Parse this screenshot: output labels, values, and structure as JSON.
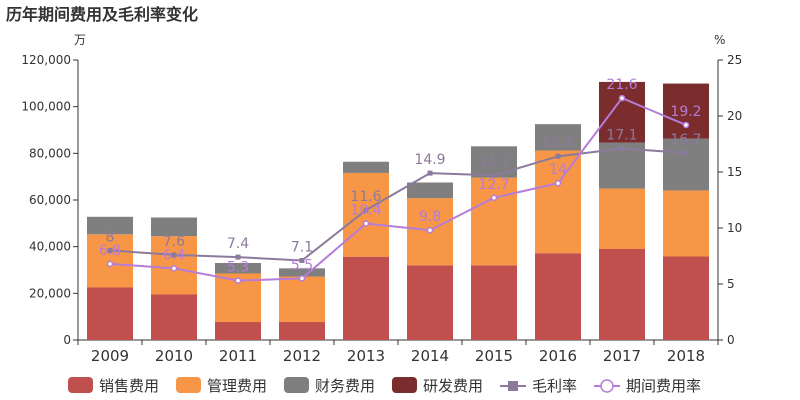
{
  "chart_data": {
    "type": "bar",
    "title": "历年期间费用及毛利率变化",
    "y_left_unit": "万",
    "y_right_unit": "%",
    "categories": [
      "2009",
      "2010",
      "2011",
      "2012",
      "2013",
      "2014",
      "2015",
      "2016",
      "2017",
      "2018"
    ],
    "ylim_left": [
      0,
      120000
    ],
    "yticks_left": [
      "0",
      "20,000",
      "40,000",
      "60,000",
      "80,000",
      "100,000",
      "120,000"
    ],
    "ylim_right": [
      0,
      25
    ],
    "yticks_right": [
      "0",
      "5",
      "10",
      "15",
      "20",
      "25"
    ],
    "legend_position": "bottom",
    "bar_series": [
      {
        "name": "销售费用",
        "color": "#c0504d",
        "values": [
          22500,
          19500,
          7700,
          7700,
          35700,
          32000,
          32000,
          37200,
          39000,
          35800
        ]
      },
      {
        "name": "管理费用",
        "color": "#f79646",
        "values": [
          22800,
          25000,
          20800,
          19500,
          35900,
          28800,
          37600,
          44000,
          25900,
          28300
        ]
      },
      {
        "name": "财务费用",
        "color": "#7f7f7f",
        "values": [
          7500,
          8000,
          4500,
          3500,
          4800,
          6700,
          13400,
          11300,
          19700,
          22200
        ]
      },
      {
        "name": "研发费用",
        "color": "#7b2c2c",
        "values": [
          0,
          0,
          0,
          0,
          0,
          0,
          0,
          0,
          26000,
          23600
        ]
      }
    ],
    "line_series": [
      {
        "name": "毛利率",
        "color": "#8c7a9c",
        "marker": "square",
        "values": [
          8,
          7.6,
          7.4,
          7.1,
          11.6,
          14.9,
          14.7,
          16.4,
          17.1,
          16.7
        ],
        "labels": [
          "8",
          "7.6",
          "7.4",
          "7.1",
          "11.6",
          "14.9",
          "14.7",
          "16.4",
          "17.1",
          "16.7"
        ]
      },
      {
        "name": "期间费用率",
        "color": "#b57cd9",
        "marker": "circle",
        "values": [
          6.8,
          6.4,
          5.3,
          5.5,
          10.4,
          9.8,
          12.7,
          14,
          21.6,
          19.2
        ],
        "labels": [
          "6.8",
          "6.4",
          "5.3",
          "5.5",
          "10.4",
          "9.8",
          "12.7",
          "14",
          "21.6",
          "19.2"
        ]
      }
    ]
  }
}
